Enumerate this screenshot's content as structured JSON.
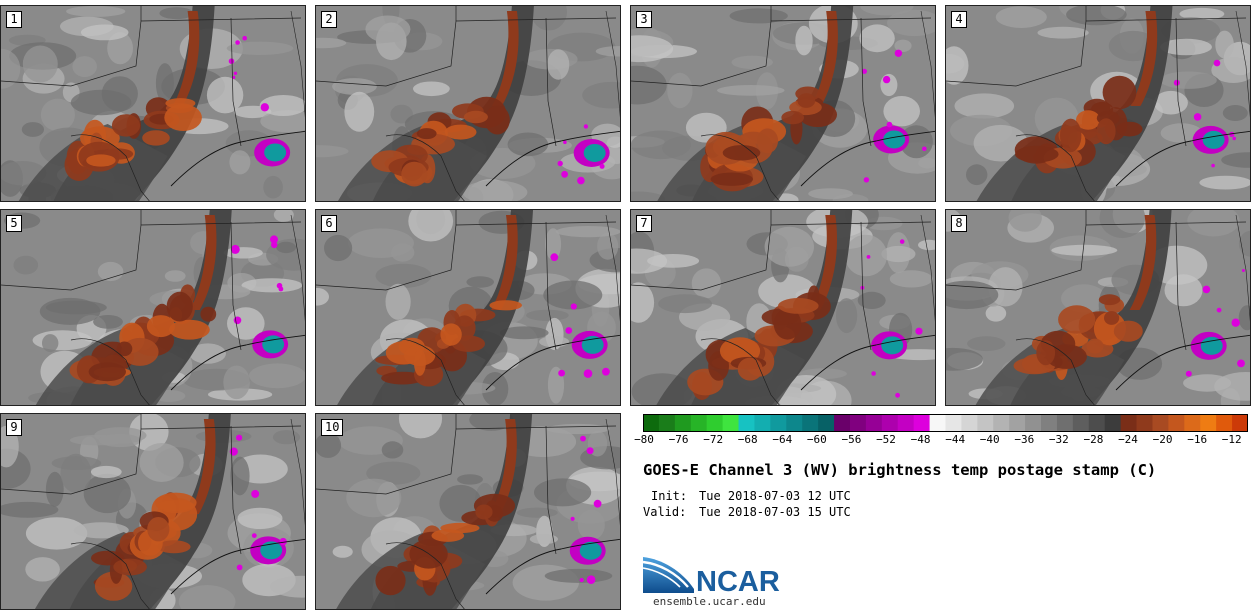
{
  "figure": {
    "title": "GOES-E Channel 3 (WV) brightness temp postage stamp (C)",
    "init_label": "Init:",
    "init_value": "Tue 2018-07-03 12 UTC",
    "valid_label": "Valid:",
    "valid_value": "Tue 2018-07-03 15 UTC"
  },
  "members": [
    "1",
    "2",
    "3",
    "4",
    "5",
    "6",
    "7",
    "8",
    "9",
    "10"
  ],
  "colorbar": {
    "ticks": [
      "−80",
      "−76",
      "−72",
      "−68",
      "−64",
      "−60",
      "−56",
      "−52",
      "−48",
      "−44",
      "−40",
      "−36",
      "−32",
      "−28",
      "−24",
      "−20",
      "−16",
      "−12"
    ],
    "min": -80,
    "max": -10,
    "colors": [
      "#0d6b0d",
      "#1a7d1a",
      "#1f9a1f",
      "#27b427",
      "#2fcd2f",
      "#3fe43f",
      "#17c2c2",
      "#13aeb0",
      "#109a9e",
      "#0d878c",
      "#0a7479",
      "#076166",
      "#6a006a",
      "#80007f",
      "#960096",
      "#ad00ad",
      "#c300c3",
      "#dd00dd",
      "#f7f7f7",
      "#e6e6e6",
      "#d5d5d5",
      "#c4c4c4",
      "#b3b3b3",
      "#a2a2a2",
      "#919191",
      "#808080",
      "#6f6f6f",
      "#5e5e5e",
      "#4d4d4d",
      "#3c3c3c",
      "#7a2e18",
      "#8f3a1c",
      "#a84a22",
      "#c4571e",
      "#dc6a1a",
      "#ef7c13",
      "#e05a0c",
      "#cc3a08"
    ]
  },
  "logo": {
    "text": "NCAR",
    "url": "ensemble.ucar.edu",
    "brand_color": "#1b5e9e"
  }
}
